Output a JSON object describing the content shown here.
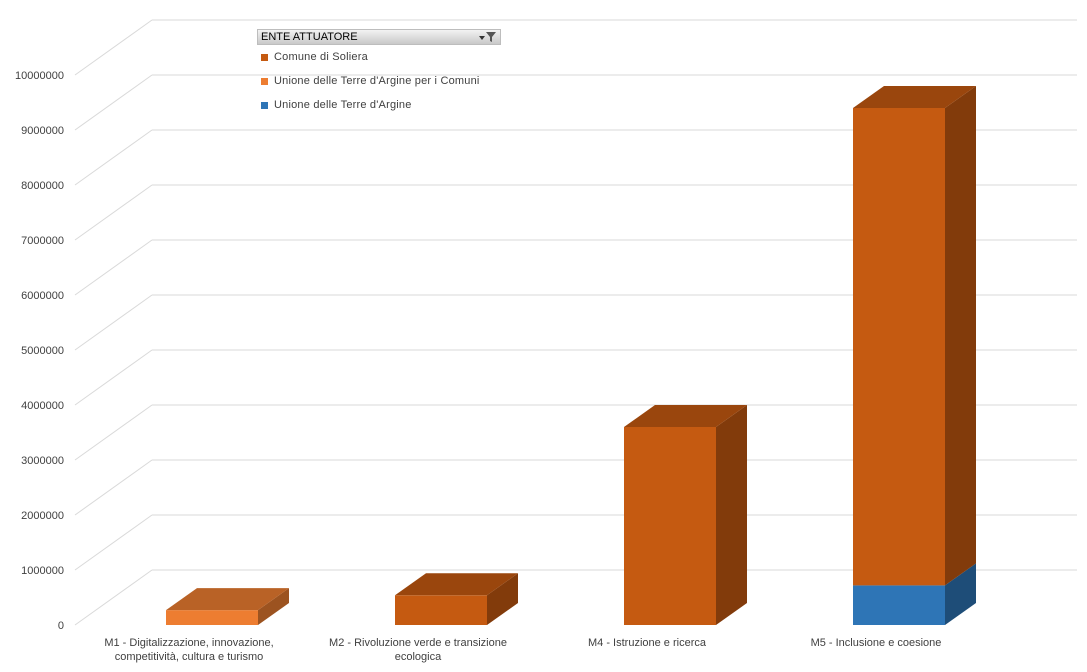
{
  "chart_data": {
    "type": "bar",
    "stacked": true,
    "three_d": true,
    "title": "",
    "xlabel": "",
    "ylabel": "",
    "ylim": [
      0,
      10000000
    ],
    "ytick_step": 1000000,
    "yticks": [
      "0",
      "1000000",
      "2000000",
      "3000000",
      "4000000",
      "5000000",
      "6000000",
      "7000000",
      "8000000",
      "9000000",
      "10000000"
    ],
    "grid": true,
    "legend_position": "top-left",
    "legend_title": "ENTE ATTUATORE",
    "categories": [
      [
        "M1 - Digitalizzazione, innovazione,",
        "competitività, cultura e turismo"
      ],
      [
        "M2 - Rivoluzione verde e transizione",
        "ecologica"
      ],
      [
        "M4 - Istruzione e ricerca"
      ],
      [
        "M5 - Inclusione e coesione"
      ]
    ],
    "series": [
      {
        "name": "Unione delle Terre d'Argine",
        "color": "#2e75b6",
        "values": [
          0,
          0,
          0,
          720000
        ]
      },
      {
        "name": "Unione delle Terre d'Argine per i Comuni",
        "color": "#ed7d31",
        "values": [
          270000,
          0,
          0,
          0
        ]
      },
      {
        "name": "Comune di Soliera",
        "color": "#c55a11",
        "values": [
          0,
          540000,
          3600000,
          8680000
        ]
      }
    ],
    "legend_order": [
      2,
      1,
      0
    ],
    "colors": {
      "grid": "#d9d9d9",
      "axis_text": "#404040"
    }
  }
}
